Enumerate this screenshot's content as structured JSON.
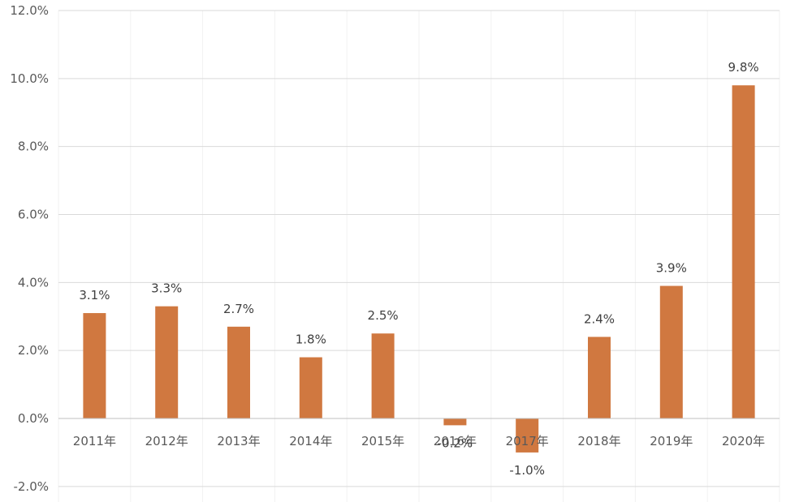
{
  "chart_data": {
    "type": "bar",
    "categories": [
      "2011年",
      "2012年",
      "2013年",
      "2014年",
      "2015年",
      "2016年",
      "2017年",
      "2018年",
      "2019年",
      "2020年"
    ],
    "values": [
      3.1,
      3.3,
      2.7,
      1.8,
      2.5,
      -0.2,
      -1.0,
      2.4,
      3.9,
      9.8
    ],
    "data_labels": [
      "3.1%",
      "3.3%",
      "2.7%",
      "1.8%",
      "2.5%",
      "-0.2%",
      "-1.0%",
      "2.4%",
      "3.9%",
      "9.8%"
    ],
    "y_ticks": [
      -2,
      0,
      2,
      4,
      6,
      8,
      10,
      12
    ],
    "y_tick_labels": [
      "-2.0%",
      "0.0%",
      "2.0%",
      "4.0%",
      "6.0%",
      "8.0%",
      "10.0%",
      "12.0%"
    ],
    "ylim": [
      -2,
      12
    ],
    "grid": true,
    "colors": {
      "bar": "#D07840",
      "grid": "#D9D9D9",
      "axis": "#BFBFBF"
    }
  }
}
